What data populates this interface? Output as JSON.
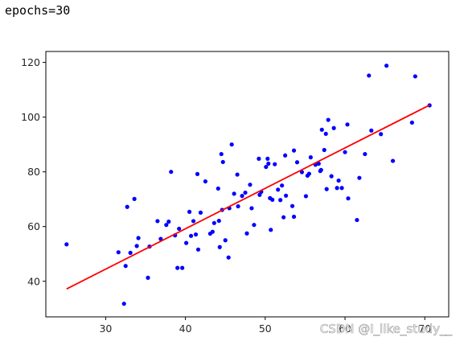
{
  "output": {
    "text": "epochs=30"
  },
  "watermark": "CSDN @I_like_study__",
  "chart_data": {
    "type": "scatter",
    "title": "",
    "xlabel": "",
    "ylabel": "",
    "xlim": [
      22.5,
      73
    ],
    "ylim": [
      27,
      124
    ],
    "xticks": [
      30,
      40,
      50,
      60,
      70
    ],
    "yticks": [
      40,
      60,
      80,
      100,
      120
    ],
    "grid": false,
    "colors": {
      "points": "#0000ff",
      "line": "#ff0000"
    },
    "points": {
      "x": [
        25.1,
        31.6,
        32.3,
        32.5,
        32.7,
        33.1,
        33.6,
        33.9,
        34.1,
        35.3,
        35.5,
        36.5,
        36.9,
        37.6,
        37.9,
        38.2,
        38.7,
        39.0,
        39.2,
        39.6,
        40.1,
        40.5,
        40.7,
        41.0,
        41.3,
        41.5,
        41.6,
        41.9,
        42.5,
        43.1,
        43.4,
        43.6,
        44.1,
        44.2,
        44.3,
        44.5,
        44.6,
        44.7,
        45.0,
        45.4,
        45.5,
        45.8,
        46.1,
        46.5,
        46.6,
        47.1,
        47.5,
        47.7,
        48.1,
        48.3,
        48.6,
        49.2,
        49.3,
        49.5,
        50.1,
        50.3,
        50.4,
        50.6,
        50.7,
        50.9,
        51.2,
        51.6,
        51.9,
        52.1,
        52.3,
        52.5,
        52.6,
        53.4,
        53.6,
        53.6,
        54.0,
        54.6,
        55.1,
        55.3,
        55.5,
        55.7,
        56.3,
        56.7,
        56.9,
        57.0,
        57.1,
        57.4,
        57.6,
        57.7,
        57.9,
        58.3,
        58.6,
        59.0,
        59.2,
        59.6,
        60.0,
        60.3,
        60.4,
        61.5,
        61.8,
        62.5,
        63.0,
        63.3,
        64.5,
        65.2,
        66.0,
        68.4,
        68.8,
        70.6
      ],
      "y": [
        53.5,
        50.6,
        31.8,
        45.6,
        67.2,
        50.4,
        70.1,
        52.9,
        55.8,
        41.3,
        52.7,
        62.0,
        55.5,
        60.6,
        61.8,
        80.0,
        56.8,
        44.9,
        59.2,
        44.9,
        54.0,
        65.4,
        56.6,
        62.0,
        57.1,
        79.2,
        51.6,
        65.1,
        76.5,
        57.4,
        58.1,
        61.3,
        73.9,
        62.1,
        52.5,
        86.5,
        66.1,
        83.6,
        55.0,
        48.7,
        66.7,
        90.0,
        72.0,
        79.0,
        67.4,
        71.2,
        72.4,
        57.5,
        75.3,
        66.7,
        60.6,
        84.8,
        71.6,
        72.7,
        81.8,
        84.8,
        83.0,
        70.4,
        58.8,
        69.8,
        82.8,
        73.5,
        69.7,
        75.0,
        63.4,
        86.0,
        71.3,
        67.5,
        63.6,
        87.8,
        83.5,
        79.9,
        71.1,
        78.6,
        79.3,
        85.3,
        82.6,
        83.0,
        80.3,
        80.7,
        95.4,
        88.0,
        93.9,
        73.7,
        99.0,
        78.4,
        96.0,
        74.1,
        76.8,
        74.1,
        87.2,
        97.3,
        70.3,
        62.4,
        77.8,
        86.5,
        115.2,
        95.1,
        93.8,
        118.8,
        84.0,
        98.0,
        114.9,
        104.3
      ]
    },
    "fit_line": {
      "x": [
        25.1,
        70.6
      ],
      "y": [
        37.2,
        104.4
      ]
    }
  }
}
